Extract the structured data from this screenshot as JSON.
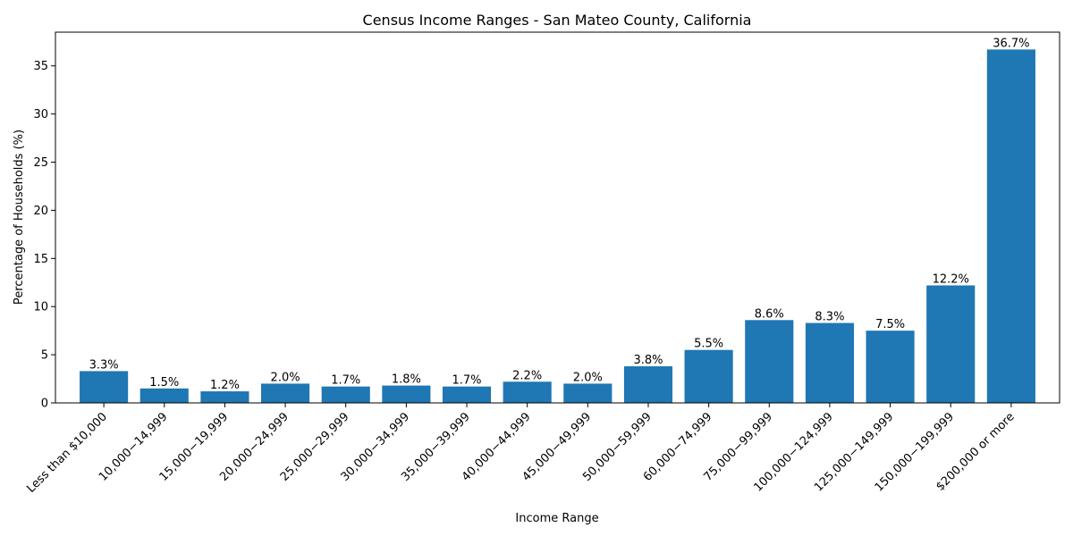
{
  "chart_data": {
    "type": "bar",
    "title": "Census Income Ranges - San Mateo County, California",
    "xlabel": "Income Range",
    "ylabel": "Percentage of Households (%)",
    "ylim": [
      0,
      38.5
    ],
    "yticks": [
      0,
      5,
      10,
      15,
      20,
      25,
      30,
      35
    ],
    "grid": false,
    "bar_color": "#1f77b4",
    "categories": [
      "Less than $10,000",
      "10,000−14,999",
      "15,000−19,999",
      "20,000−24,999",
      "25,000−29,999",
      "30,000−34,999",
      "35,000−39,999",
      "40,000−44,999",
      "45,000−49,999",
      "50,000−59,999",
      "60,000−74,999",
      "75,000−99,999",
      "100,000−124,999",
      "125,000−149,999",
      "150,000−199,999",
      "$200,000 or more"
    ],
    "values": [
      3.3,
      1.5,
      1.2,
      2.0,
      1.7,
      1.8,
      1.7,
      2.2,
      2.0,
      3.8,
      5.5,
      8.6,
      8.3,
      7.5,
      12.2,
      36.7
    ],
    "value_labels": [
      "3.3%",
      "1.5%",
      "1.2%",
      "2.0%",
      "1.7%",
      "1.8%",
      "1.7%",
      "2.2%",
      "2.0%",
      "3.8%",
      "5.5%",
      "8.6%",
      "8.3%",
      "7.5%",
      "12.2%",
      "36.7%"
    ]
  }
}
